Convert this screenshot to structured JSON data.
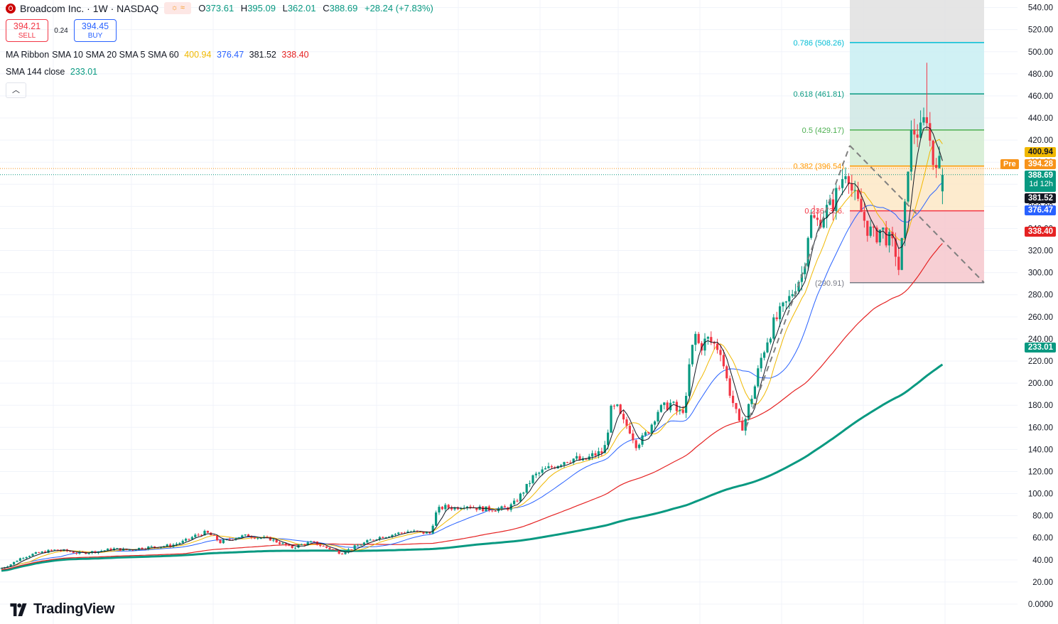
{
  "header": {
    "symbol": "Broadcom Inc. · 1W · NASDAQ",
    "session_icon": "sun-icon",
    "ohlc": {
      "o_label": "O",
      "o": "373.61",
      "h_label": "H",
      "h": "395.09",
      "l_label": "L",
      "l": "362.01",
      "c_label": "C",
      "c": "388.69",
      "change": "+28.24 (+7.83%)"
    }
  },
  "trade": {
    "sell_price": "394.21",
    "sell_label": "SELL",
    "spread": "0.24",
    "buy_price": "394.45",
    "buy_label": "BUY"
  },
  "indicators": {
    "ma_ribbon": {
      "name": "MA Ribbon",
      "params": "SMA 10 SMA 20 SMA 5 SMA 60",
      "v1": "400.94",
      "v2": "376.47",
      "v3": "381.52",
      "v4": "338.40"
    },
    "sma144": {
      "name": "SMA 144 close",
      "value": "233.01"
    }
  },
  "colors": {
    "up": "#089981",
    "down": "#f23645",
    "sma10": "#f0b800",
    "sma20": "#2962ff",
    "sma5": "#131722",
    "sma60": "#e52222",
    "sma144": "#089981"
  },
  "badges": {
    "sma10": "400.94",
    "pre_label": "Pre",
    "pre_price": "394.28",
    "close": "388.69",
    "countdown": "1d 12h",
    "sma5": "381.52",
    "sma20": "376.47",
    "sma60": "338.40",
    "sma144": "233.01"
  },
  "fib_labels": [
    "0.786 (508.26)",
    "0.618 (461.81)",
    "0.5 (429.17)",
    "0.382 (396.54)",
    "0.236 (356.",
    "(290.91)"
  ],
  "brand": "TradingView",
  "chart_data": {
    "type": "candlestick",
    "title": "Broadcom Inc. · 1W · NASDAQ",
    "ylim": [
      0,
      550
    ],
    "yticks": [
      0,
      20,
      40,
      60,
      80,
      100,
      120,
      140,
      160,
      180,
      200,
      220,
      240,
      260,
      280,
      300,
      320,
      340,
      360,
      380,
      400,
      420,
      440,
      460,
      480,
      500,
      520,
      540
    ],
    "ytick_labels": [
      "0.0000",
      "20.00",
      "40.00",
      "60.00",
      "80.00",
      "100.00",
      "120.00",
      "140.00",
      "160.00",
      "180.00",
      "200.00",
      "220.00",
      "240.00",
      "260.00",
      "280.00",
      "300.00",
      "320.00",
      "340.00",
      "360.00",
      "380.00",
      "400.00",
      "420.00",
      "440.00",
      "460.00",
      "480.00",
      "500.00",
      "520.00",
      "540.00"
    ],
    "fib_levels": [
      {
        "ratio": 1,
        "price": 290.91,
        "color": "#787b86"
      },
      {
        "ratio": 0.236,
        "price": 356.0,
        "color": "#f23645"
      },
      {
        "ratio": 0.382,
        "price": 396.54,
        "color": "#ff9800"
      },
      {
        "ratio": 0.5,
        "price": 429.17,
        "color": "#4caf50"
      },
      {
        "ratio": 0.618,
        "price": 461.81,
        "color": "#089981"
      },
      {
        "ratio": 0.786,
        "price": 508.26,
        "color": "#00bcd4"
      },
      {
        "ratio": 0,
        "price": 550,
        "color": "#787b86"
      }
    ],
    "price_path": [
      [
        0,
        32
      ],
      [
        15,
        36
      ],
      [
        30,
        42
      ],
      [
        45,
        45
      ],
      [
        60,
        47
      ],
      [
        75,
        49
      ],
      [
        95,
        48
      ],
      [
        110,
        46
      ],
      [
        125,
        47
      ],
      [
        140,
        48
      ],
      [
        160,
        50
      ],
      [
        180,
        49
      ],
      [
        200,
        51
      ],
      [
        220,
        52
      ],
      [
        240,
        53
      ],
      [
        260,
        57
      ],
      [
        275,
        62
      ],
      [
        290,
        65
      ],
      [
        300,
        61
      ],
      [
        310,
        56
      ],
      [
        320,
        58
      ],
      [
        335,
        61
      ],
      [
        350,
        62
      ],
      [
        365,
        60
      ],
      [
        380,
        59
      ],
      [
        395,
        55
      ],
      [
        410,
        51
      ],
      [
        425,
        54
      ],
      [
        440,
        56
      ],
      [
        455,
        52
      ],
      [
        470,
        49
      ],
      [
        480,
        46
      ],
      [
        490,
        49
      ],
      [
        500,
        52
      ],
      [
        515,
        56
      ],
      [
        530,
        60
      ],
      [
        545,
        62
      ],
      [
        560,
        64
      ],
      [
        575,
        66
      ],
      [
        590,
        65
      ],
      [
        605,
        64
      ],
      [
        615,
        85
      ],
      [
        625,
        88
      ],
      [
        640,
        87
      ],
      [
        655,
        90
      ],
      [
        670,
        87
      ],
      [
        685,
        86
      ],
      [
        700,
        86
      ],
      [
        715,
        87
      ],
      [
        725,
        92
      ],
      [
        740,
        105
      ],
      [
        750,
        115
      ],
      [
        765,
        121
      ],
      [
        780,
        125
      ],
      [
        795,
        130
      ],
      [
        810,
        132
      ],
      [
        820,
        129
      ],
      [
        835,
        135
      ],
      [
        850,
        138
      ],
      [
        860,
        175
      ],
      [
        868,
        178
      ],
      [
        876,
        165
      ],
      [
        885,
        160
      ],
      [
        895,
        145
      ],
      [
        905,
        150
      ],
      [
        915,
        160
      ],
      [
        925,
        175
      ],
      [
        935,
        178
      ],
      [
        945,
        182
      ],
      [
        955,
        172
      ],
      [
        965,
        180
      ],
      [
        970,
        215
      ],
      [
        978,
        245
      ],
      [
        985,
        232
      ],
      [
        995,
        240
      ],
      [
        1005,
        235
      ],
      [
        1015,
        230
      ],
      [
        1020,
        210
      ],
      [
        1028,
        190
      ],
      [
        1035,
        175
      ],
      [
        1042,
        158
      ],
      [
        1048,
        165
      ],
      [
        1055,
        182
      ],
      [
        1062,
        196
      ],
      [
        1070,
        220
      ],
      [
        1080,
        240
      ],
      [
        1090,
        255
      ],
      [
        1100,
        265
      ],
      [
        1110,
        275
      ],
      [
        1120,
        290
      ],
      [
        1130,
        300
      ],
      [
        1140,
        350
      ],
      [
        1150,
        345
      ],
      [
        1160,
        355
      ],
      [
        1170,
        360
      ],
      [
        1180,
        375
      ],
      [
        1190,
        395
      ],
      [
        1195,
        390
      ],
      [
        1200,
        370
      ],
      [
        1210,
        358
      ],
      [
        1220,
        342
      ],
      [
        1230,
        332
      ],
      [
        1240,
        340
      ],
      [
        1250,
        330
      ],
      [
        1260,
        320
      ],
      [
        1265,
        303
      ],
      [
        1272,
        340
      ],
      [
        1280,
        420
      ],
      [
        1288,
        430
      ],
      [
        1295,
        425
      ],
      [
        1300,
        435
      ],
      [
        1305,
        445
      ],
      [
        1310,
        410
      ],
      [
        1315,
        395
      ],
      [
        1320,
        415
      ],
      [
        1325,
        370
      ],
      [
        1328,
        388.69
      ]
    ],
    "candles_sample_close": 388.69,
    "last_open": 373.61,
    "last_high": 395.09,
    "last_low": 362.01,
    "last_close": 388.69
  }
}
